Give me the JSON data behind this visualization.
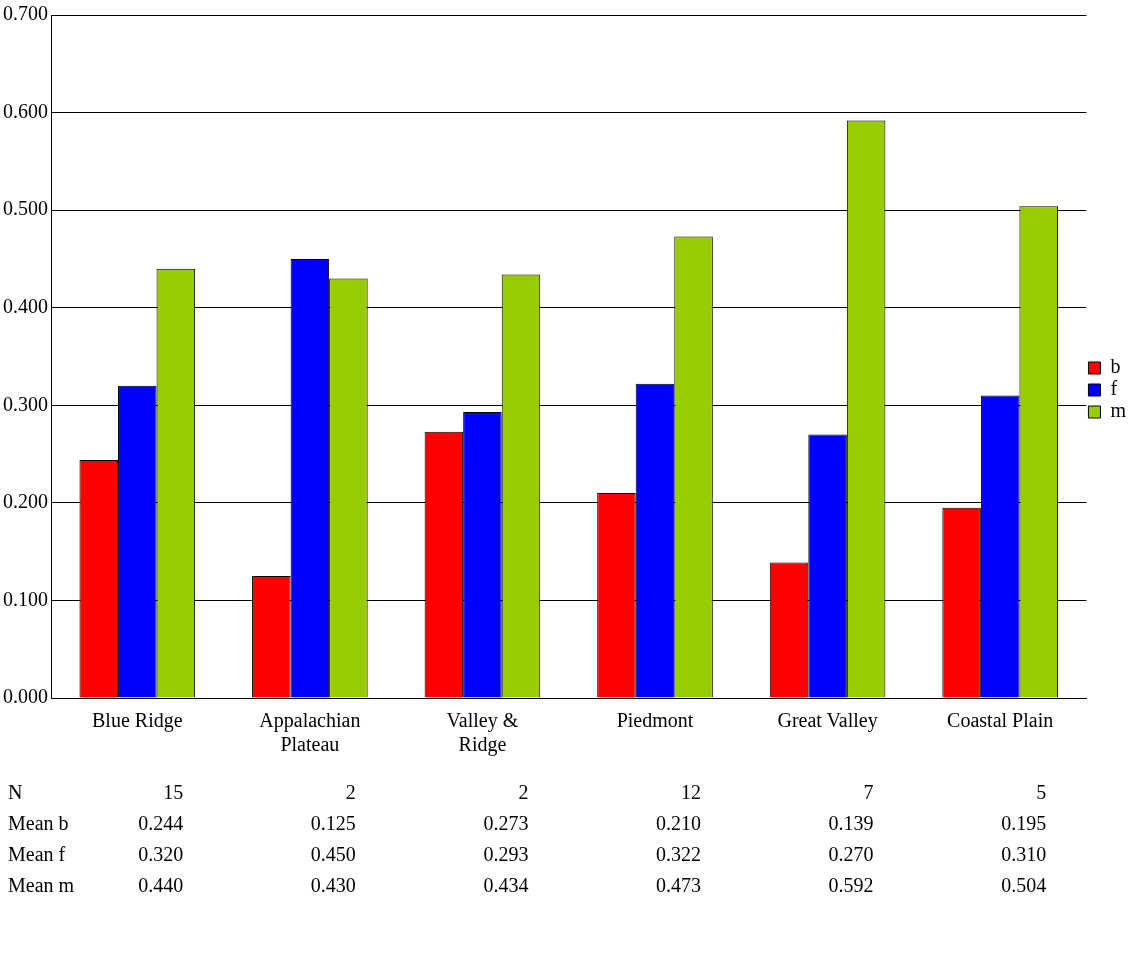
{
  "chart_data": {
    "type": "bar",
    "categories": [
      "Blue Ridge",
      "Appalachian Plateau",
      "Valley & Ridge",
      "Piedmont",
      "Great Valley",
      "Coastal Plain"
    ],
    "series": [
      {
        "name": "b",
        "color": "#ff0000",
        "values": [
          0.244,
          0.125,
          0.273,
          0.21,
          0.139,
          0.195
        ],
        "value_labels": [
          "0.244",
          "0.125",
          "0.273",
          "0.210",
          "0.139",
          "0.195"
        ]
      },
      {
        "name": "f",
        "color": "#0000ff",
        "values": [
          0.32,
          0.45,
          0.293,
          0.322,
          0.27,
          0.31
        ],
        "value_labels": [
          "0.320",
          "0.450",
          "0.293",
          "0.322",
          "0.270",
          "0.310"
        ]
      },
      {
        "name": "m",
        "color": "#99cc00",
        "values": [
          0.44,
          0.43,
          0.434,
          0.473,
          0.592,
          0.504
        ],
        "value_labels": [
          "0.440",
          "0.430",
          "0.434",
          "0.473",
          "0.592",
          "0.504"
        ]
      }
    ],
    "ylim": [
      0,
      0.7
    ],
    "yticks": [
      {
        "value": 0,
        "label": "0.000"
      },
      {
        "value": 0.1,
        "label": "0.100"
      },
      {
        "value": 0.2,
        "label": "0.200"
      },
      {
        "value": 0.3,
        "label": "0.300"
      },
      {
        "value": 0.4,
        "label": "0.400"
      },
      {
        "value": 0.5,
        "label": "0.500"
      },
      {
        "value": 0.6,
        "label": "0.600"
      },
      {
        "value": 0.7,
        "label": "0.700"
      }
    ],
    "grid": "y",
    "legend": "right",
    "annotations": [
      "N",
      "15",
      "2",
      "2",
      "12",
      "7",
      "5",
      "Mean b",
      "Mean f",
      "Mean m"
    ]
  }
}
